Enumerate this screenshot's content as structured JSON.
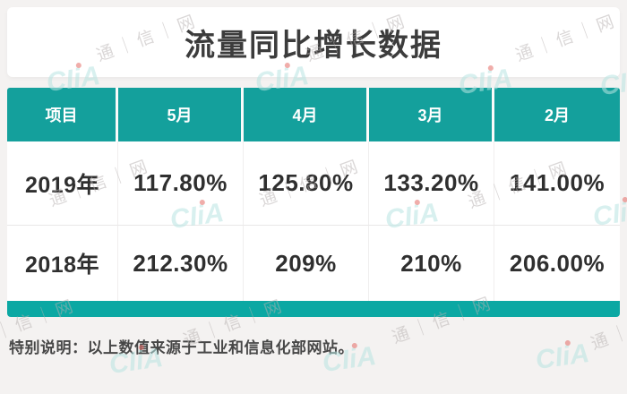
{
  "title": "流量同比增长数据",
  "table": {
    "headers": [
      "项目",
      "5月",
      "4月",
      "3月",
      "2月"
    ],
    "rows": [
      {
        "label": "2019年",
        "values": [
          "117.80%",
          "125.80%",
          "133.20%",
          "141.00%"
        ]
      },
      {
        "label": "2018年",
        "values": [
          "212.30%",
          "209%",
          "210%",
          "206.00%"
        ]
      }
    ]
  },
  "footnote": "特别说明：以上数值来源于工业和信息化部网站。",
  "watermark": {
    "site_text": "通｜信｜网",
    "logo_text": "CIiA"
  },
  "colors": {
    "header_teal": "#14a09c",
    "bottom_bar_teal": "#0ba8a3",
    "title_text": "#3c3c3c",
    "cell_text": "#2f2f2f",
    "page_background": "#f4f2f1",
    "watermark_text": "#b7b1b1",
    "watermark_logo": "#b9e5e2",
    "watermark_logo_dot": "#e56b66"
  },
  "chart_data": {
    "type": "table",
    "title": "流量同比增长数据",
    "columns": [
      "项目",
      "5月",
      "4月",
      "3月",
      "2月"
    ],
    "rows": [
      [
        "2019年",
        "117.80%",
        "125.80%",
        "133.20%",
        "141.00%"
      ],
      [
        "2018年",
        "212.30%",
        "209%",
        "210%",
        "206.00%"
      ]
    ],
    "series": [
      {
        "name": "2019年",
        "values_percent": [
          117.8,
          125.8,
          133.2,
          141.0
        ]
      },
      {
        "name": "2018年",
        "values_percent": [
          212.3,
          209.0,
          210.0,
          206.0
        ]
      }
    ],
    "categories": [
      "5月",
      "4月",
      "3月",
      "2月"
    ],
    "note": "特别说明：以上数值来源于工业和信息化部网站。"
  }
}
